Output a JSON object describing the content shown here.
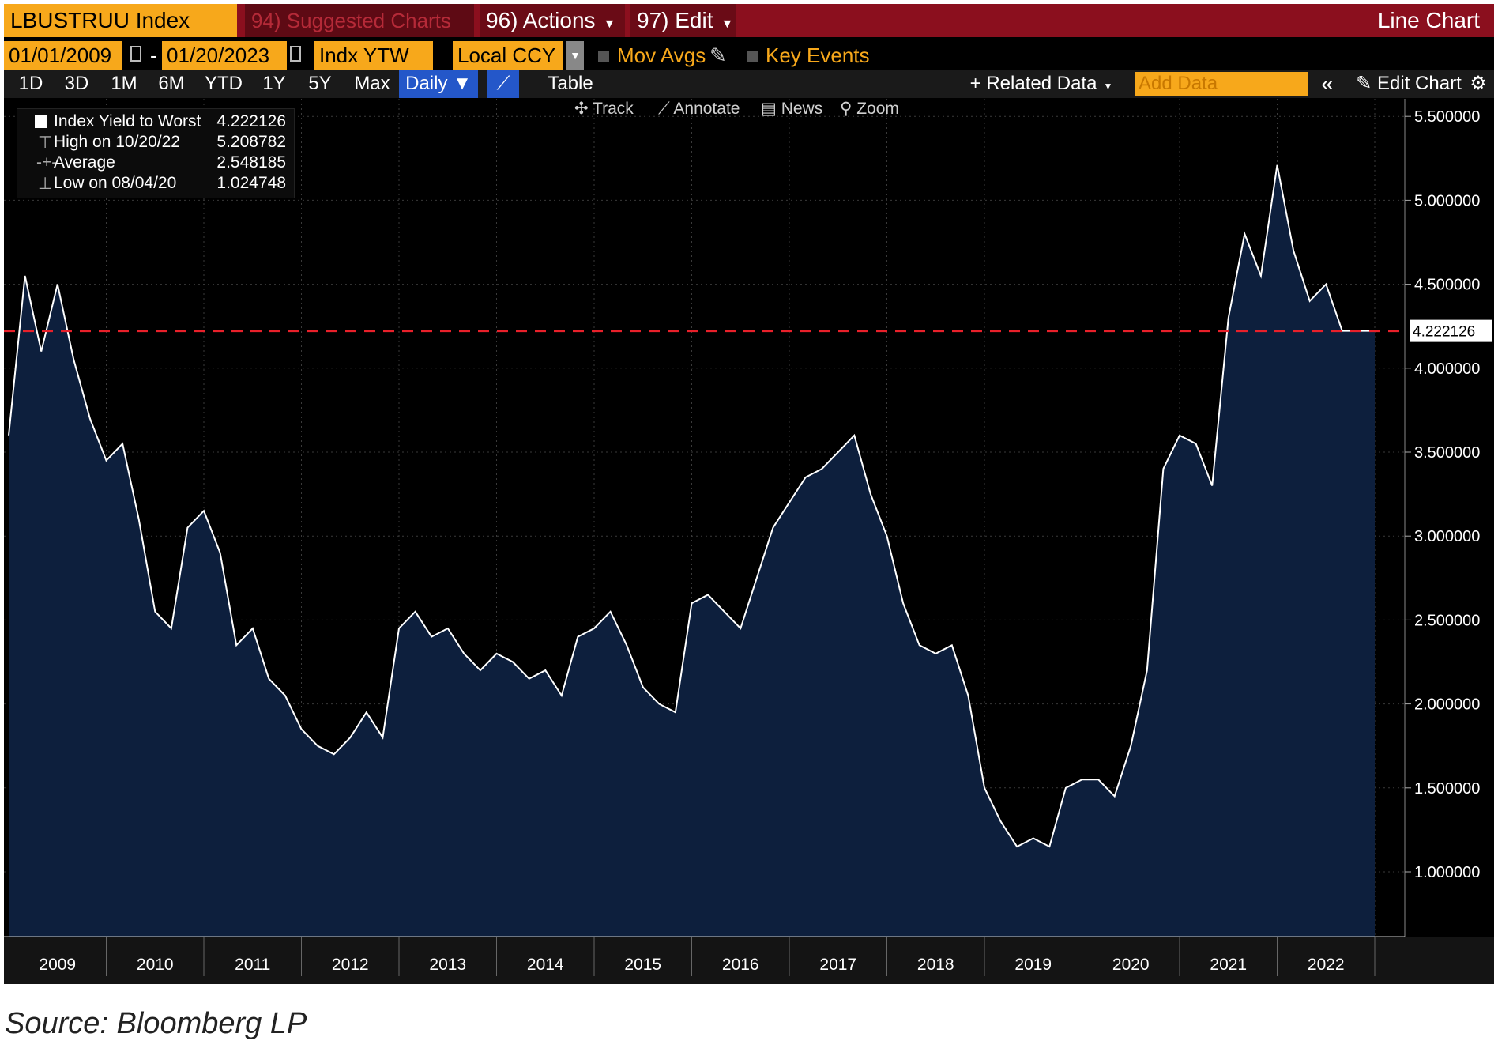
{
  "header": {
    "ticker": "LBUSTRUU Index",
    "suggested": "94) Suggested Charts",
    "actions": "96) Actions",
    "edit": "97) Edit",
    "chart_type": "Line Chart"
  },
  "controls": {
    "start_date": "01/01/2009",
    "end_date": "01/20/2023",
    "field": "Indx YTW",
    "currency": "Local CCY",
    "mov_avgs": "Mov Avgs",
    "key_events": "Key Events"
  },
  "periods": [
    "1D",
    "3D",
    "1M",
    "6M",
    "YTD",
    "1Y",
    "5Y",
    "Max"
  ],
  "frequency": "Daily ▼",
  "table_label": "Table",
  "related_data": "+ Related Data",
  "add_data_placeholder": "Add Data",
  "edit_chart": "Edit Chart",
  "tools": {
    "track": "Track",
    "annotate": "Annotate",
    "news": "News",
    "zoom": "Zoom"
  },
  "legend": {
    "series": {
      "label": "Index Yield to Worst",
      "value": "4.222126"
    },
    "high": {
      "label": "High on 10/20/22",
      "value": "5.208782"
    },
    "average": {
      "label": "Average",
      "value": "2.548185"
    },
    "low": {
      "label": "Low on 08/04/20",
      "value": "1.024748"
    }
  },
  "colors": {
    "accent": "#f7a81b",
    "header": "#8b0f1e",
    "area": "#0d1f3d",
    "line": "#ffffff",
    "ref_line": "#e8202a",
    "blue": "#2457c9"
  },
  "chart_data": {
    "type": "area",
    "series": [
      {
        "name": "Index Yield to Worst",
        "x": [
          "2009-01",
          "2009-03",
          "2009-05",
          "2009-07",
          "2009-09",
          "2009-11",
          "2010-01",
          "2010-03",
          "2010-05",
          "2010-07",
          "2010-09",
          "2010-11",
          "2011-01",
          "2011-03",
          "2011-05",
          "2011-07",
          "2011-09",
          "2011-11",
          "2012-01",
          "2012-03",
          "2012-05",
          "2012-07",
          "2012-09",
          "2012-11",
          "2013-01",
          "2013-03",
          "2013-05",
          "2013-07",
          "2013-09",
          "2013-11",
          "2014-01",
          "2014-03",
          "2014-05",
          "2014-07",
          "2014-09",
          "2014-11",
          "2015-01",
          "2015-03",
          "2015-05",
          "2015-07",
          "2015-09",
          "2015-11",
          "2016-01",
          "2016-03",
          "2016-05",
          "2016-07",
          "2016-09",
          "2016-11",
          "2017-01",
          "2017-03",
          "2017-05",
          "2017-07",
          "2017-09",
          "2017-11",
          "2018-01",
          "2018-03",
          "2018-05",
          "2018-07",
          "2018-09",
          "2018-11",
          "2019-01",
          "2019-03",
          "2019-05",
          "2019-07",
          "2019-09",
          "2019-11",
          "2020-01",
          "2020-03",
          "2020-05",
          "2020-07",
          "2020-09",
          "2020-11",
          "2021-01",
          "2021-03",
          "2021-05",
          "2021-07",
          "2021-09",
          "2021-11",
          "2022-01",
          "2022-03",
          "2022-05",
          "2022-07",
          "2022-09",
          "2022-10",
          "2022-11",
          "2022-12",
          "2023-01"
        ],
        "values": [
          3.6,
          4.55,
          4.1,
          4.5,
          4.05,
          3.7,
          3.45,
          3.55,
          3.1,
          2.55,
          2.45,
          3.05,
          3.15,
          2.9,
          2.35,
          2.45,
          2.15,
          2.05,
          1.85,
          1.75,
          1.7,
          1.8,
          1.95,
          1.8,
          2.45,
          2.55,
          2.4,
          2.45,
          2.3,
          2.2,
          2.3,
          2.25,
          2.15,
          2.2,
          2.05,
          2.4,
          2.45,
          2.55,
          2.35,
          2.1,
          2.0,
          1.95,
          2.6,
          2.65,
          2.55,
          2.45,
          2.75,
          3.05,
          3.2,
          3.35,
          3.4,
          3.5,
          3.6,
          3.25,
          3.0,
          2.6,
          2.35,
          2.3,
          2.35,
          2.05,
          1.5,
          1.3,
          1.15,
          1.2,
          1.15,
          1.5,
          1.55,
          1.55,
          1.45,
          1.75,
          2.2,
          3.4,
          3.6,
          3.55,
          3.3,
          4.3,
          4.8,
          4.55,
          5.21,
          4.7,
          4.4,
          4.5,
          4.222126,
          4.222126,
          4.222126,
          4.222126,
          4.222126
        ]
      }
    ],
    "y_ticks": [
      "5.500000",
      "5.000000",
      "4.500000",
      "4.000000",
      "3.500000",
      "3.000000",
      "2.500000",
      "2.000000",
      "1.500000",
      "1.000000"
    ],
    "x_ticks": [
      "2009",
      "2010",
      "2011",
      "2012",
      "2013",
      "2014",
      "2015",
      "2016",
      "2017",
      "2018",
      "2019",
      "2020",
      "2021",
      "2022"
    ],
    "last_value": "4.222126",
    "ylim": [
      0.6,
      5.6
    ]
  },
  "footer": {
    "source": "Source: Bloomberg LP"
  }
}
